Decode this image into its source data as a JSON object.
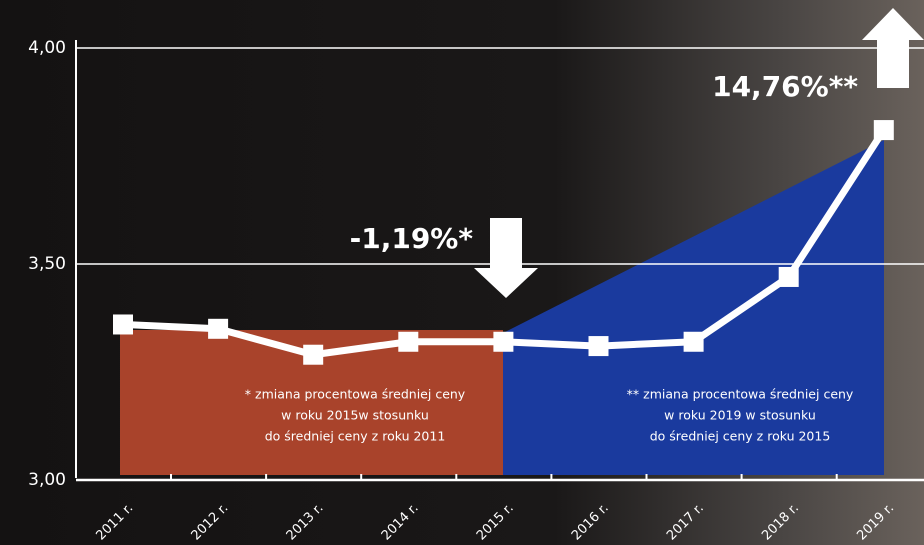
{
  "chart_data": {
    "type": "line",
    "categories": [
      "2011 r.",
      "2012 r.",
      "2013 r.",
      "2014 r.",
      "2015 r.",
      "2016 r.",
      "2017 r.",
      "2018 r.",
      "2019 r."
    ],
    "series": [
      {
        "color": "#ffffff",
        "values": [
          3.36,
          3.35,
          3.29,
          3.32,
          3.32,
          3.31,
          3.32,
          3.47,
          3.81
        ]
      }
    ],
    "ylim": [
      3,
      4
    ],
    "yticks": [
      {
        "value": 3,
        "label": "3,00"
      },
      {
        "value": 3.5,
        "label": "3,50"
      },
      {
        "value": 4,
        "label": "4,00"
      }
    ],
    "grid": true,
    "annotations": [
      "-1,19%*",
      "14,76%**"
    ],
    "notes": [
      [
        "* zmiana procentowa średniej ceny",
        "w roku 2015w stosunku",
        "do średniej ceny z roku 2011"
      ],
      [
        "** zmiana procentowa średniej ceny",
        "w roku 2019 w stosunku",
        "do średniej ceny z roku 2015"
      ]
    ]
  }
}
